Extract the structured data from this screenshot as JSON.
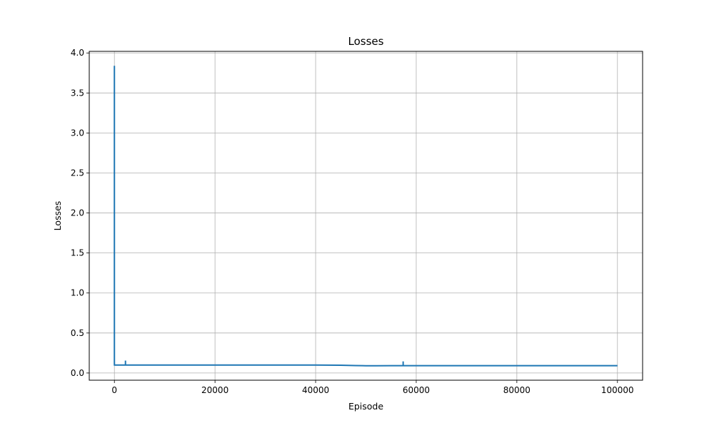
{
  "chart_data": {
    "type": "line",
    "title": "Losses",
    "xlabel": "Episode",
    "ylabel": "Losses",
    "xlim": [
      -5000,
      105000
    ],
    "ylim": [
      -0.09,
      4.02
    ],
    "xticks": [
      0,
      20000,
      40000,
      60000,
      80000,
      100000
    ],
    "xtick_labels": [
      "0",
      "20000",
      "40000",
      "60000",
      "80000",
      "100000"
    ],
    "yticks": [
      0.0,
      0.5,
      1.0,
      1.5,
      2.0,
      2.5,
      3.0,
      3.5,
      4.0
    ],
    "ytick_labels": [
      "0.0",
      "0.5",
      "1.0",
      "1.5",
      "2.0",
      "2.5",
      "3.0",
      "3.5",
      "4.0"
    ],
    "grid": true,
    "series": [
      {
        "color": "#1f77b4",
        "x": [
          0,
          1,
          2,
          10,
          100,
          500,
          2200,
          2201,
          2202,
          2300,
          10000,
          20000,
          30000,
          40000,
          45000,
          48000,
          50000,
          52000,
          55000,
          57400,
          57401,
          57402,
          57500,
          60000,
          70000,
          80000,
          90000,
          100000
        ],
        "y": [
          3.84,
          0.15,
          0.105,
          0.1,
          0.1,
          0.1,
          0.1,
          0.155,
          0.1,
          0.1,
          0.1,
          0.1,
          0.1,
          0.1,
          0.097,
          0.093,
          0.091,
          0.091,
          0.092,
          0.092,
          0.145,
          0.092,
          0.092,
          0.092,
          0.092,
          0.092,
          0.092,
          0.092
        ]
      }
    ]
  }
}
